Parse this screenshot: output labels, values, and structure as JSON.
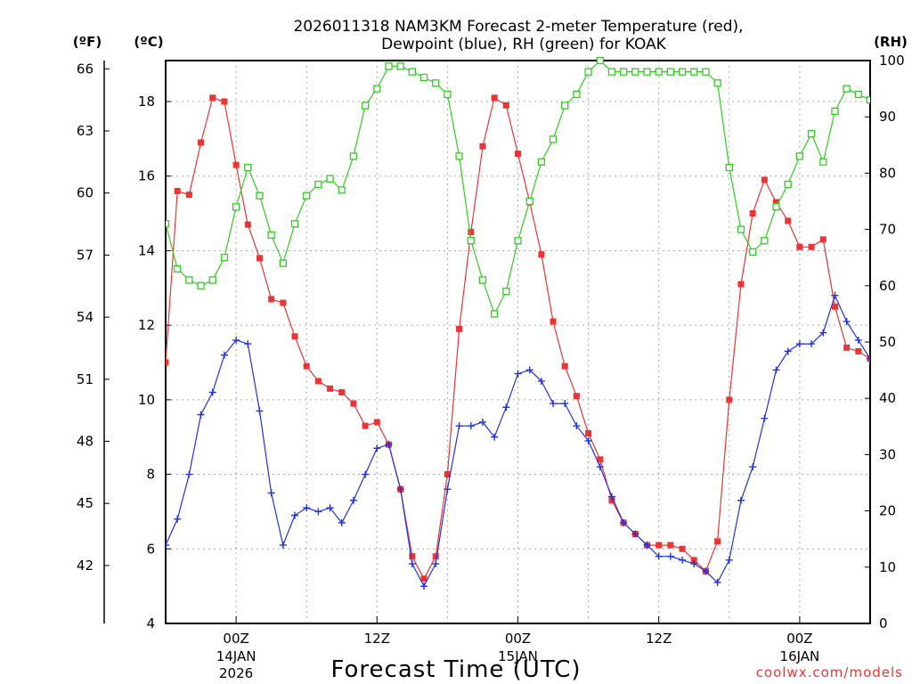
{
  "chart_data": {
    "type": "line",
    "title_line1": "2026011318 NAM3KM Forecast 2-meter Temperature (red),",
    "title_line2": "Dewpoint (blue), RH (green) for KOAK",
    "xlabel": "Forecast Time (UTC)",
    "credit": "coolwx.com/models",
    "units": {
      "fahrenheit": "(ºF)",
      "celsius": "(ºC)",
      "rh": "(RH)"
    },
    "x_range_hours": [
      -6,
      54
    ],
    "celsius_range": [
      4,
      19.1
    ],
    "fahrenheit_range": [
      39.2,
      66.4
    ],
    "rh_range": [
      0,
      100
    ],
    "celsius_ticks": [
      "4",
      "6",
      "8",
      "10",
      "12",
      "14",
      "16",
      "18"
    ],
    "fahrenheit_ticks": [
      "42",
      "45",
      "48",
      "51",
      "54",
      "57",
      "60",
      "63",
      "66"
    ],
    "rh_ticks": [
      "0",
      "10",
      "20",
      "30",
      "40",
      "50",
      "60",
      "70",
      "80",
      "90",
      "100"
    ],
    "x_ticks": [
      {
        "hour": 0,
        "label": "00Z",
        "date": "14JAN",
        "year": "2026"
      },
      {
        "hour": 12,
        "label": "12Z",
        "date": "",
        "year": ""
      },
      {
        "hour": 24,
        "label": "00Z",
        "date": "15JAN",
        "year": ""
      },
      {
        "hour": 36,
        "label": "12Z",
        "date": "",
        "year": ""
      },
      {
        "hour": 48,
        "label": "00Z",
        "date": "16JAN",
        "year": ""
      }
    ],
    "x": [
      -6,
      -5,
      -4,
      -3,
      -2,
      -1,
      0,
      1,
      2,
      3,
      4,
      5,
      6,
      7,
      8,
      9,
      10,
      11,
      12,
      13,
      14,
      15,
      16,
      17,
      18,
      19,
      20,
      21,
      22,
      23,
      24,
      25,
      26,
      27,
      28,
      29,
      30,
      31,
      32,
      33,
      34,
      35,
      36,
      37,
      38,
      39,
      40,
      41,
      42,
      43,
      44,
      45,
      46,
      47,
      48,
      49,
      50,
      51,
      52,
      53,
      54
    ],
    "series": [
      {
        "name": "2-meter Temperature",
        "unit": "C",
        "color": "#ee3333",
        "marker": "square-filled",
        "values": [
          11.0,
          15.6,
          15.5,
          16.9,
          18.1,
          18.0,
          16.3,
          14.7,
          13.8,
          12.7,
          12.6,
          11.7,
          10.9,
          10.5,
          10.3,
          10.2,
          9.9,
          9.3,
          9.4,
          8.8,
          7.6,
          5.8,
          5.2,
          5.8,
          8.0,
          11.9,
          14.5,
          16.8,
          18.1,
          17.9,
          16.6,
          15.3,
          13.9,
          12.1,
          10.9,
          10.1,
          9.1,
          8.4,
          7.3,
          6.7,
          6.4,
          6.1,
          6.1,
          6.1,
          6.0,
          5.7,
          5.4,
          6.2,
          10.0,
          13.1,
          15.0,
          15.9,
          15.3,
          14.8,
          14.1,
          14.1,
          14.3,
          12.5,
          11.4,
          11.3,
          11.1
        ]
      },
      {
        "name": "Dewpoint",
        "unit": "C",
        "color": "#2233dd",
        "marker": "plus",
        "values": [
          6.1,
          6.8,
          8.0,
          9.6,
          10.2,
          11.2,
          11.6,
          11.5,
          9.7,
          7.5,
          6.1,
          6.9,
          7.1,
          7.0,
          7.1,
          6.7,
          7.3,
          8.0,
          8.7,
          8.8,
          7.6,
          5.6,
          5.0,
          5.6,
          7.6,
          9.3,
          9.3,
          9.4,
          9.0,
          9.8,
          10.7,
          10.8,
          10.5,
          9.9,
          9.9,
          9.3,
          8.9,
          8.2,
          7.4,
          6.7,
          6.4,
          6.1,
          5.8,
          5.8,
          5.7,
          5.6,
          5.4,
          5.1,
          5.7,
          7.3,
          8.2,
          9.5,
          10.8,
          11.3,
          11.5,
          11.5,
          11.8,
          12.8,
          12.1,
          11.6,
          11.1
        ]
      },
      {
        "name": "RH",
        "unit": "%",
        "color": "#33cc22",
        "marker": "square-open",
        "values": [
          71,
          63,
          61,
          60,
          61,
          65,
          74,
          81,
          76,
          69,
          64,
          71,
          76,
          78,
          79,
          77,
          83,
          92,
          95,
          99,
          99,
          98,
          97,
          96,
          94,
          83,
          68,
          61,
          55,
          59,
          68,
          75,
          82,
          86,
          92,
          94,
          98,
          100,
          98,
          98,
          98,
          98,
          98,
          98,
          98,
          98,
          98,
          96,
          81,
          70,
          66,
          68,
          74,
          78,
          83,
          87,
          82,
          91,
          95,
          94,
          93
        ]
      }
    ]
  }
}
